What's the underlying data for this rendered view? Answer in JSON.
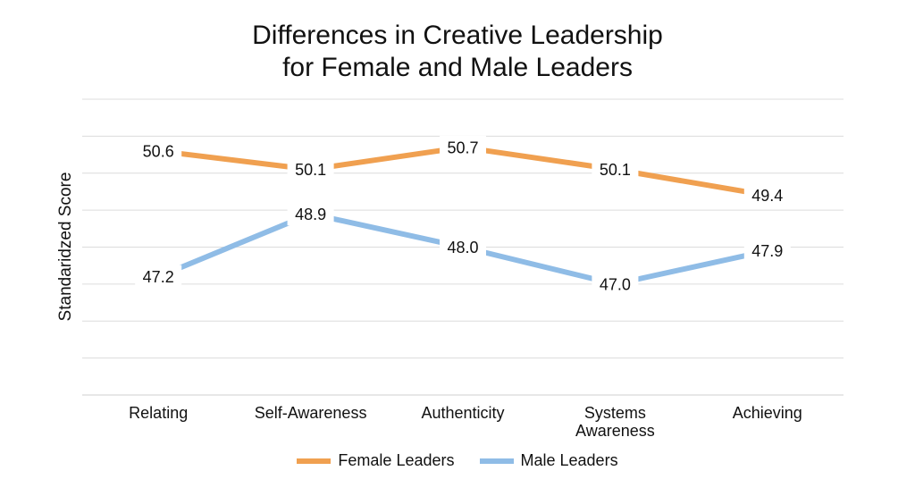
{
  "chart_data": {
    "type": "line",
    "title": [
      "Differences in Creative Leadership",
      "for Female and Male Leaders"
    ],
    "xlabel": "",
    "ylabel": "Standaridzed Score",
    "categories": [
      [
        "Relating"
      ],
      [
        "Self-Awareness"
      ],
      [
        "Authenticity"
      ],
      [
        "Systems",
        "Awareness"
      ],
      [
        "Achieving"
      ]
    ],
    "ylim": [
      44,
      52
    ],
    "grid": true,
    "legend_position": "bottom",
    "series": [
      {
        "name": "Female Leaders",
        "color": "#F0A050",
        "values": [
          50.6,
          50.1,
          50.7,
          50.1,
          49.4
        ],
        "labels": [
          "50.6",
          "50.1",
          "50.7",
          "50.1",
          "49.4"
        ]
      },
      {
        "name": "Male Leaders",
        "color": "#8FBCE6",
        "values": [
          47.2,
          48.9,
          48.0,
          47.0,
          47.9
        ],
        "labels": [
          "47.2",
          "48.9",
          "48.0",
          "47.0",
          "47.9"
        ]
      }
    ]
  }
}
